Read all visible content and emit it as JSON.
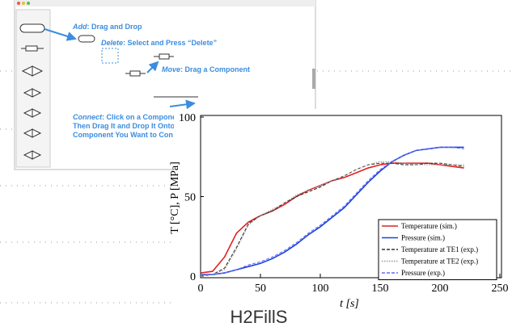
{
  "ui": {
    "instructions": [
      {
        "keyword": "Add",
        "text": ": Drag and Drop"
      },
      {
        "keyword": "Delete",
        "text": ": Select and Press “Delete”"
      },
      {
        "keyword": "Move",
        "text": ": Drag a Component"
      },
      {
        "keyword": "Connect",
        "text": ": Click on a Compone"
      }
    ],
    "connect_lines": [
      "Then Drag It and Drop It Onto",
      "Component You Want to Con"
    ]
  },
  "chart_data": {
    "type": "line",
    "xlabel": "t [s]",
    "ylabel": "T [°C], P [MPa]",
    "x": [
      0,
      10,
      20,
      30,
      40,
      50,
      60,
      70,
      80,
      90,
      100,
      110,
      120,
      130,
      140,
      150,
      160,
      170,
      180,
      190,
      200,
      210,
      220
    ],
    "series": [
      {
        "name": "Temperature (sim.)",
        "color": "#e02020",
        "dash": "solid",
        "values": [
          2,
          3,
          12,
          27,
          34,
          38,
          41,
          45,
          50,
          54,
          57,
          60,
          62,
          65,
          68,
          70,
          71,
          71,
          71,
          71,
          70,
          69,
          68
        ]
      },
      {
        "name": "Pressure (sim.)",
        "color": "#2040e0",
        "dash": "solid",
        "values": [
          1,
          1,
          2,
          4,
          6,
          8,
          11,
          15,
          20,
          26,
          31,
          37,
          43,
          51,
          59,
          66,
          72,
          76,
          79,
          80,
          81,
          81,
          81
        ]
      },
      {
        "name": "Temperature at TE1 (exp.)",
        "color": "#333333",
        "dash": "dashed",
        "values": [
          0,
          1,
          5,
          18,
          33,
          38,
          41,
          46,
          50,
          53,
          56,
          60,
          63,
          67,
          70,
          71,
          71,
          70,
          70,
          71,
          71,
          70,
          69
        ]
      },
      {
        "name": "Temperature at TE2 (exp.)",
        "color": "#999999",
        "dash": "dotted",
        "values": [
          0,
          1,
          4,
          17,
          32,
          38,
          42,
          46,
          51,
          54,
          57,
          60,
          63,
          67,
          70,
          72,
          72,
          71,
          70,
          70,
          70,
          70,
          70
        ]
      },
      {
        "name": "Pressure (exp.)",
        "color": "#6070f0",
        "dash": "dashed",
        "values": [
          1,
          1,
          2,
          4,
          7,
          9,
          12,
          16,
          21,
          27,
          32,
          38,
          44,
          52,
          60,
          67,
          72,
          76,
          79,
          80,
          81,
          81,
          80
        ]
      }
    ],
    "xlim": [
      0,
      250
    ],
    "xticks": [
      0,
      50,
      100,
      150,
      200,
      250
    ],
    "ylim": [
      0,
      100
    ],
    "yticks": [
      0,
      50,
      100
    ],
    "legend": "lower-right"
  },
  "caption": "H2FillS"
}
